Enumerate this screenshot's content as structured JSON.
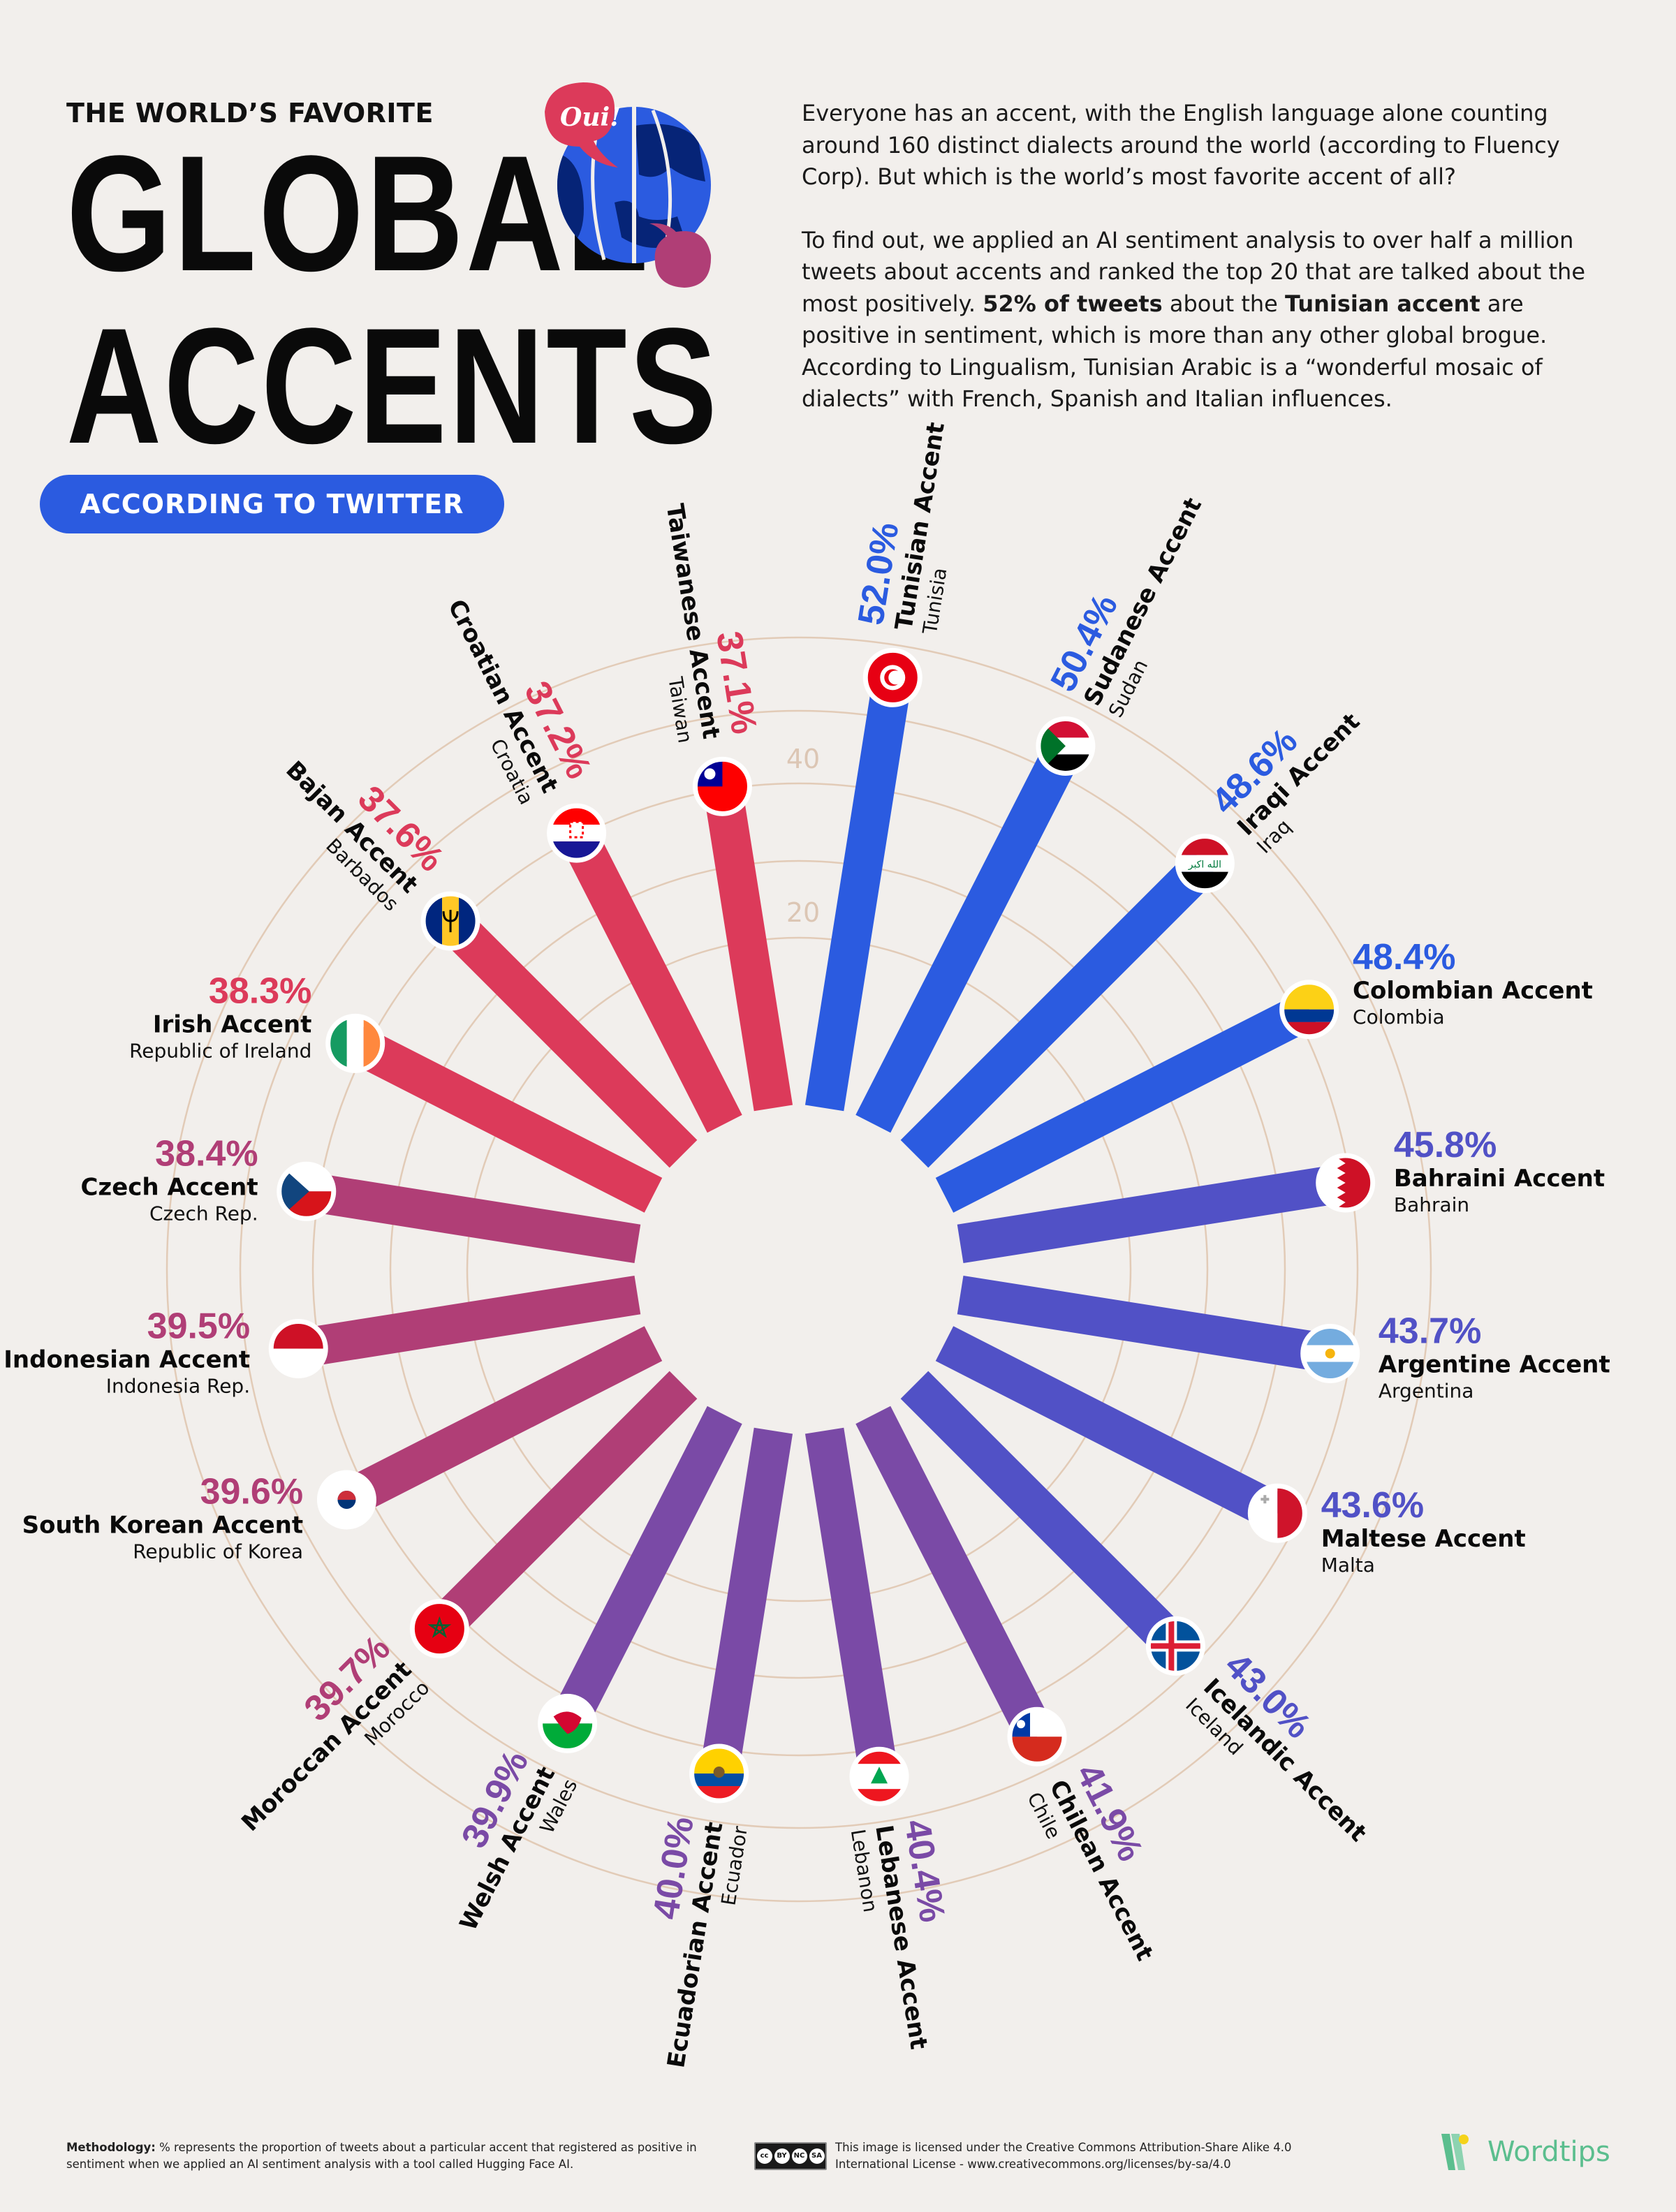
{
  "header": {
    "kicker": "THE WORLD’S FAVORITE",
    "title_line1": "GLOBAL",
    "title_line2": "ACCENTS",
    "badge": "ACCORDING TO TWITTER",
    "globe_bubble_text": "Oui!"
  },
  "intro": {
    "p1": "Everyone has an accent, with the English language alone counting around 160 distinct dialects around the world (according to Fluency Corp). But which is the world’s most favorite accent of all?",
    "p2_a": "To find out, we applied an AI sentiment analysis to over half a million tweets about accents and ranked the top 20 that are talked about the most positively. ",
    "p2_b1": "52% of tweets",
    "p2_c": " about the ",
    "p2_b2": "Tunisian accent",
    "p2_d": " are positive in sentiment, which is more than any other global brogue. According to Lingualism, Tunisian Arabic is a “wonderful mosaic of dialects” with French, Spanish and Italian influences."
  },
  "colors": {
    "background": "#F2EFEC",
    "ring": "#E2CBB7",
    "blue": "#2B5BE0",
    "indigo": "#5151C6",
    "purple": "#7A4AA6",
    "magenta": "#B03E76",
    "red": "#DC3A5A",
    "badge": "#2B5BE0",
    "logo": "#5BBE8E"
  },
  "chart_data": {
    "type": "radial-bar",
    "title": "The World’s Favorite Global Accents According to Twitter",
    "value_label": "% of tweets about accent with positive sentiment",
    "axis_ticks": [
      20,
      40
    ],
    "unit": "%",
    "categories": [
      "Tunisian Accent",
      "Sudanese Accent",
      "Iraqi Accent",
      "Colombian Accent",
      "Bahraini Accent",
      "Argentine Accent",
      "Maltese Accent",
      "Icelandic Accent",
      "Chilean Accent",
      "Lebanese Accent",
      "Ecuadorian Accent",
      "Welsh Accent",
      "Moroccan Accent",
      "South Korean Accent",
      "Indonesian Accent",
      "Czech Accent",
      "Irish Accent",
      "Bajan Accent",
      "Croatian Accent",
      "Taiwanese Accent"
    ],
    "values": [
      52.0,
      50.4,
      48.6,
      48.4,
      45.8,
      43.7,
      43.6,
      43.0,
      41.9,
      40.4,
      40.0,
      39.9,
      39.7,
      39.6,
      39.5,
      38.4,
      38.3,
      37.6,
      37.2,
      37.1
    ],
    "items": [
      {
        "accent": "Tunisian Accent",
        "country": "Tunisia",
        "value": "52.0%",
        "v": 52.0,
        "color": "blue",
        "flag": "tunisia"
      },
      {
        "accent": "Sudanese Accent",
        "country": "Sudan",
        "value": "50.4%",
        "v": 50.4,
        "color": "blue",
        "flag": "sudan"
      },
      {
        "accent": "Iraqi Accent",
        "country": "Iraq",
        "value": "48.6%",
        "v": 48.6,
        "color": "blue",
        "flag": "iraq"
      },
      {
        "accent": "Colombian Accent",
        "country": "Colombia",
        "value": "48.4%",
        "v": 48.4,
        "color": "blue",
        "flag": "colombia"
      },
      {
        "accent": "Bahraini Accent",
        "country": "Bahrain",
        "value": "45.8%",
        "v": 45.8,
        "color": "indigo",
        "flag": "bahrain"
      },
      {
        "accent": "Argentine Accent",
        "country": "Argentina",
        "value": "43.7%",
        "v": 43.7,
        "color": "indigo",
        "flag": "argentina"
      },
      {
        "accent": "Maltese Accent",
        "country": "Malta",
        "value": "43.6%",
        "v": 43.6,
        "color": "indigo",
        "flag": "malta"
      },
      {
        "accent": "Icelandic Accent",
        "country": "Iceland",
        "value": "43.0%",
        "v": 43.0,
        "color": "indigo",
        "flag": "iceland"
      },
      {
        "accent": "Chilean Accent",
        "country": "Chile",
        "value": "41.9%",
        "v": 41.9,
        "color": "purple",
        "flag": "chile"
      },
      {
        "accent": "Lebanese Accent",
        "country": "Lebanon",
        "value": "40.4%",
        "v": 40.4,
        "color": "purple",
        "flag": "lebanon"
      },
      {
        "accent": "Ecuadorian Accent",
        "country": "Ecuador",
        "value": "40.0%",
        "v": 40.0,
        "color": "purple",
        "flag": "ecuador"
      },
      {
        "accent": "Welsh Accent",
        "country": "Wales",
        "value": "39.9%",
        "v": 39.9,
        "color": "purple",
        "flag": "wales"
      },
      {
        "accent": "Moroccan Accent",
        "country": "Morocco",
        "value": "39.7%",
        "v": 39.7,
        "color": "magenta",
        "flag": "morocco"
      },
      {
        "accent": "South Korean Accent",
        "country": "Republic of Korea",
        "value": "39.6%",
        "v": 39.6,
        "color": "magenta",
        "flag": "korea"
      },
      {
        "accent": "Indonesian Accent",
        "country": "Indonesia Rep.",
        "value": "39.5%",
        "v": 39.5,
        "color": "magenta",
        "flag": "indonesia"
      },
      {
        "accent": "Czech Accent",
        "country": "Czech Rep.",
        "value": "38.4%",
        "v": 38.4,
        "color": "magenta",
        "flag": "czech"
      },
      {
        "accent": "Irish Accent",
        "country": "Republic of Ireland",
        "value": "38.3%",
        "v": 38.3,
        "color": "red",
        "flag": "ireland"
      },
      {
        "accent": "Bajan Accent",
        "country": "Barbados",
        "value": "37.6%",
        "v": 37.6,
        "color": "red",
        "flag": "barbados"
      },
      {
        "accent": "Croatian Accent",
        "country": "Croatia",
        "value": "37.2%",
        "v": 37.2,
        "color": "red",
        "flag": "croatia"
      },
      {
        "accent": "Taiwanese Accent",
        "country": "Taiwan",
        "value": "37.1%",
        "v": 37.1,
        "color": "red",
        "flag": "taiwan"
      }
    ]
  },
  "footer": {
    "method_label": "Methodology:",
    "method_text": " % represents the proportion of tweets about a particular accent that registered as positive in sentiment when we applied an AI sentiment analysis with a tool called Hugging Face AI.",
    "cc_badges": [
      "cc",
      "BY",
      "NC",
      "SA"
    ],
    "license_text": "This image is licensed under the Creative Commons Attribution-Share Alike 4.0 International License - www.creativecommons.org/licenses/by-sa/4.0",
    "logo_text": "Wordtips"
  }
}
